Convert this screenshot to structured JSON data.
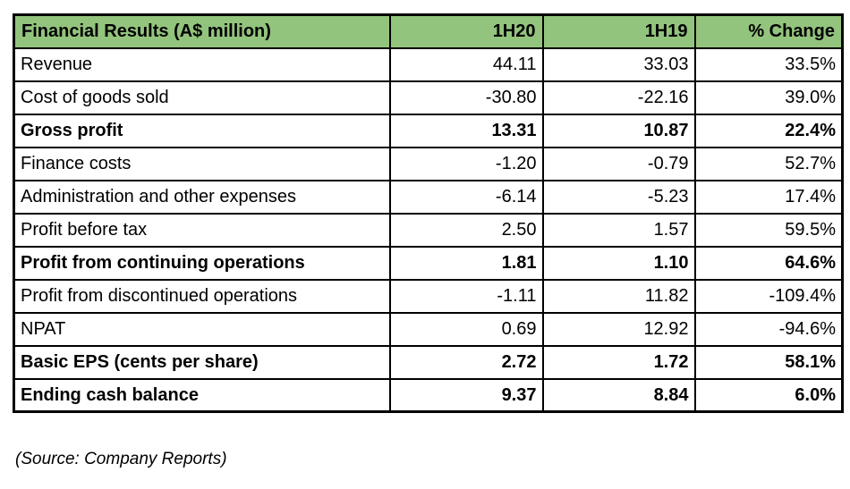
{
  "colors": {
    "header_bg": "#93c47d",
    "border": "#000000",
    "text": "#000000"
  },
  "chart_data": {
    "type": "table",
    "title": "Financial Results (A$ million)",
    "columns": [
      "Financial Results (A$ million)",
      "1H20",
      "1H19",
      "% Change"
    ],
    "rows": [
      {
        "label": "Revenue",
        "h1_20": "44.11",
        "h1_19": "33.03",
        "pct_change": "33.5%",
        "bold": false
      },
      {
        "label": "Cost of goods sold",
        "h1_20": "-30.80",
        "h1_19": "-22.16",
        "pct_change": "39.0%",
        "bold": false
      },
      {
        "label": "Gross profit",
        "h1_20": "13.31",
        "h1_19": "10.87",
        "pct_change": "22.4%",
        "bold": true
      },
      {
        "label": "Finance costs",
        "h1_20": "-1.20",
        "h1_19": "-0.79",
        "pct_change": "52.7%",
        "bold": false
      },
      {
        "label": "Administration and other expenses",
        "h1_20": "-6.14",
        "h1_19": "-5.23",
        "pct_change": "17.4%",
        "bold": false
      },
      {
        "label": "Profit before tax",
        "h1_20": "2.50",
        "h1_19": "1.57",
        "pct_change": "59.5%",
        "bold": false
      },
      {
        "label": "Profit from continuing operations",
        "h1_20": "1.81",
        "h1_19": "1.10",
        "pct_change": "64.6%",
        "bold": true
      },
      {
        "label": "Profit from discontinued operations",
        "h1_20": "-1.11",
        "h1_19": "11.82",
        "pct_change": "-109.4%",
        "bold": false
      },
      {
        "label": "NPAT",
        "h1_20": "0.69",
        "h1_19": "12.92",
        "pct_change": "-94.6%",
        "bold": false
      },
      {
        "label": "Basic EPS (cents per share)",
        "h1_20": "2.72",
        "h1_19": "1.72",
        "pct_change": "58.1%",
        "bold": true
      },
      {
        "label": "Ending cash balance",
        "h1_20": "9.37",
        "h1_19": "8.84",
        "pct_change": "6.0%",
        "bold": true
      }
    ]
  },
  "footer": {
    "source_note": "(Source: Company Reports)"
  }
}
